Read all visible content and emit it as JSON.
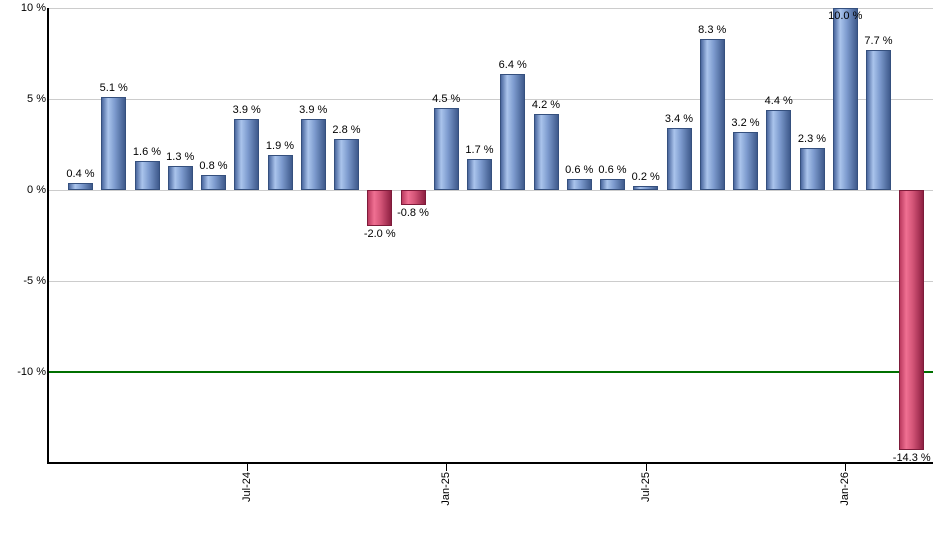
{
  "chart_data": {
    "type": "bar",
    "value_unit": "%",
    "values": [
      0.4,
      5.1,
      1.6,
      1.3,
      0.8,
      3.9,
      1.9,
      3.9,
      2.8,
      -2.0,
      -0.8,
      4.5,
      1.7,
      6.4,
      4.2,
      0.6,
      0.6,
      0.2,
      3.4,
      8.3,
      3.2,
      4.4,
      2.3,
      10.0,
      7.7,
      -14.3
    ],
    "bar_labels": [
      "0.4 %",
      "5.1 %",
      "1.6 %",
      "1.3 %",
      "0.8 %",
      "3.9 %",
      "1.9 %",
      "3.9 %",
      "2.8 %",
      "-2.0 %",
      "-0.8 %",
      "4.5 %",
      "1.7 %",
      "6.4 %",
      "4.2 %",
      "0.6 %",
      "0.6 %",
      "0.2 %",
      "3.4 %",
      "8.3 %",
      "3.2 %",
      "4.4 %",
      "2.3 %",
      "10.0 %",
      "7.7 %",
      "-14.3 %"
    ],
    "x_ticks": [
      {
        "label": "Jul-24",
        "bar_index": 5
      },
      {
        "label": "Jan-25",
        "bar_index": 11
      },
      {
        "label": "Jul-25",
        "bar_index": 17
      },
      {
        "label": "Jan-26",
        "bar_index": 23
      }
    ],
    "y_ticks": [
      {
        "label": "10 %",
        "value": 10
      },
      {
        "label": "5 %",
        "value": 5
      },
      {
        "label": "0 %",
        "value": 0
      },
      {
        "label": "-5 %",
        "value": -5
      },
      {
        "label": "-10 %",
        "value": -10
      }
    ],
    "ylim": [
      -15,
      10
    ],
    "grid": true,
    "legend": "none",
    "reference_line": {
      "value": -10,
      "color": "#007000"
    },
    "colors": {
      "positive_gradient": [
        "#4a679e",
        "#aac4ec",
        "#7e9ccf",
        "#3f5a8c"
      ],
      "positive_border": "#35507e",
      "negative_gradient": [
        "#bb3a5f",
        "#ef7092",
        "#d45578",
        "#8f2042"
      ],
      "negative_border": "#7d1b3a",
      "grid_color": "#cccccc",
      "axis_color": "#000000",
      "text_color": "#000000",
      "background": "#ffffff"
    }
  }
}
